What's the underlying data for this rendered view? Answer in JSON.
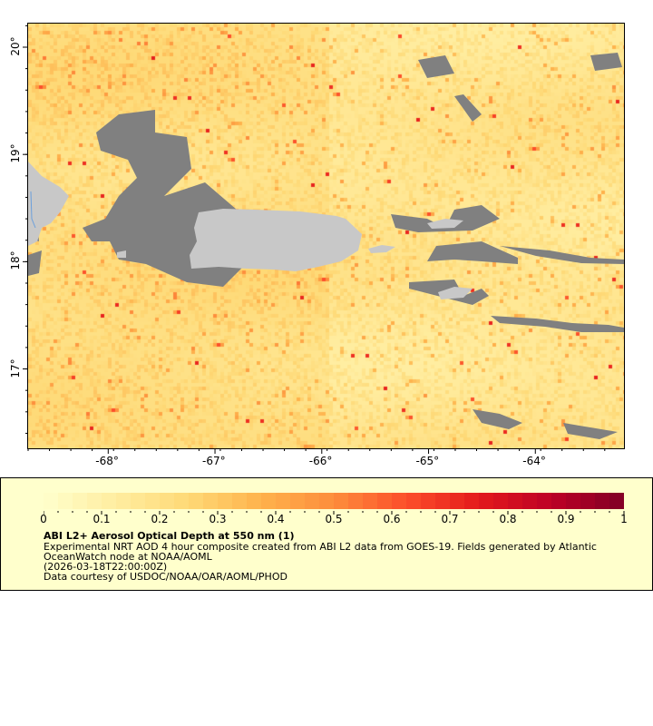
{
  "map": {
    "lon_range": [
      -68.75,
      -63.17
    ],
    "lat_range": [
      16.26,
      20.22
    ],
    "lon_ticks": [
      {
        "value": -68,
        "label": "-68°"
      },
      {
        "value": -67,
        "label": "-67°"
      },
      {
        "value": -66,
        "label": "-66°"
      },
      {
        "value": -65,
        "label": "-65°"
      },
      {
        "value": -64,
        "label": "-64°"
      }
    ],
    "lat_ticks": [
      {
        "value": 20,
        "label": "20°"
      },
      {
        "value": 19,
        "label": "19°"
      },
      {
        "value": 18,
        "label": "18°"
      },
      {
        "value": 17,
        "label": "17°"
      }
    ],
    "colors": {
      "land": "#c8c8c8",
      "no_data": "#808080",
      "coastline": "#6ca0dc"
    }
  },
  "legend": {
    "colorbar": {
      "min": 0,
      "max": 1,
      "colormap": "YlOrRd",
      "tick_labels": [
        "0",
        "0.1",
        "0.2",
        "0.3",
        "0.4",
        "0.5",
        "0.6",
        "0.7",
        "0.8",
        "0.9",
        "1"
      ]
    },
    "title": "ABI L2+ Aerosol Optical Depth at 550 nm (1)",
    "lines": [
      "Experimental NRT AOD 4 hour composite created from ABI L2 data from GOES-19. Fields generated by Atlantic",
      "OceanWatch node at NOAA/AOML",
      "(2026-03-18T22:00:00Z)",
      "Data courtesy of USDOC/NOAA/OAR/AOML/PHOD"
    ]
  }
}
